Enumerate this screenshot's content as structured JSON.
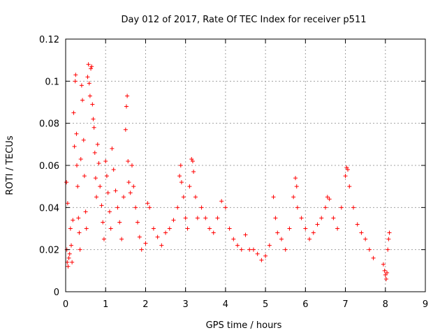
{
  "chart_data": {
    "type": "scatter",
    "title": "Day 012 of 2017, Rate Of TEC Index for receiver p511",
    "xlabel": "GPS time / hours",
    "ylabel": "ROTI / TECUs",
    "xlim": [
      0,
      9
    ],
    "ylim": [
      0,
      0.12
    ],
    "xticks": [
      0,
      1,
      2,
      3,
      4,
      5,
      6,
      7,
      8,
      9
    ],
    "xtick_labels": [
      "0",
      "1",
      "2",
      "3",
      "4",
      "5",
      "6",
      "7",
      "8",
      "9"
    ],
    "yticks": [
      0,
      0.02,
      0.04,
      0.06,
      0.08,
      0.1,
      0.12
    ],
    "ytick_labels": [
      "0",
      "0.02",
      "0.04",
      "0.06",
      "0.08",
      "0.1",
      "0.12"
    ],
    "grid": true,
    "marker": "+",
    "color": "#ff0000",
    "series": [
      {
        "name": "ROTI",
        "points": [
          [
            0.02,
            0.052
          ],
          [
            0.05,
            0.042
          ],
          [
            0.03,
            0.02
          ],
          [
            0.04,
            0.014
          ],
          [
            0.06,
            0.012
          ],
          [
            0.08,
            0.016
          ],
          [
            0.1,
            0.018
          ],
          [
            0.12,
            0.03
          ],
          [
            0.14,
            0.022
          ],
          [
            0.16,
            0.014
          ],
          [
            0.18,
            0.034
          ],
          [
            0.2,
            0.085
          ],
          [
            0.22,
            0.069
          ],
          [
            0.24,
            0.1
          ],
          [
            0.25,
            0.103
          ],
          [
            0.27,
            0.075
          ],
          [
            0.28,
            0.06
          ],
          [
            0.3,
            0.05
          ],
          [
            0.32,
            0.035
          ],
          [
            0.34,
            0.028
          ],
          [
            0.36,
            0.02
          ],
          [
            0.38,
            0.063
          ],
          [
            0.4,
            0.098
          ],
          [
            0.42,
            0.091
          ],
          [
            0.45,
            0.072
          ],
          [
            0.47,
            0.055
          ],
          [
            0.5,
            0.038
          ],
          [
            0.52,
            0.03
          ],
          [
            0.55,
            0.102
          ],
          [
            0.57,
            0.108
          ],
          [
            0.59,
            0.099
          ],
          [
            0.61,
            0.093
          ],
          [
            0.63,
            0.106
          ],
          [
            0.65,
            0.107
          ],
          [
            0.67,
            0.089
          ],
          [
            0.69,
            0.082
          ],
          [
            0.71,
            0.078
          ],
          [
            0.73,
            0.066
          ],
          [
            0.75,
            0.054
          ],
          [
            0.77,
            0.045
          ],
          [
            0.8,
            0.07
          ],
          [
            0.83,
            0.061
          ],
          [
            0.86,
            0.05
          ],
          [
            0.9,
            0.041
          ],
          [
            0.93,
            0.033
          ],
          [
            0.96,
            0.025
          ],
          [
            1.0,
            0.062
          ],
          [
            1.03,
            0.055
          ],
          [
            1.06,
            0.047
          ],
          [
            1.1,
            0.038
          ],
          [
            1.13,
            0.03
          ],
          [
            1.16,
            0.068
          ],
          [
            1.2,
            0.058
          ],
          [
            1.25,
            0.048
          ],
          [
            1.3,
            0.04
          ],
          [
            1.35,
            0.033
          ],
          [
            1.4,
            0.025
          ],
          [
            1.45,
            0.045
          ],
          [
            1.5,
            0.077
          ],
          [
            1.52,
            0.088
          ],
          [
            1.54,
            0.093
          ],
          [
            1.56,
            0.062
          ],
          [
            1.58,
            0.052
          ],
          [
            1.62,
            0.047
          ],
          [
            1.66,
            0.06
          ],
          [
            1.7,
            0.05
          ],
          [
            1.75,
            0.04
          ],
          [
            1.8,
            0.033
          ],
          [
            1.85,
            0.026
          ],
          [
            1.9,
            0.02
          ],
          [
            2.0,
            0.023
          ],
          [
            2.05,
            0.042
          ],
          [
            2.1,
            0.04
          ],
          [
            2.2,
            0.03
          ],
          [
            2.3,
            0.026
          ],
          [
            2.4,
            0.022
          ],
          [
            2.5,
            0.028
          ],
          [
            2.6,
            0.03
          ],
          [
            2.7,
            0.034
          ],
          [
            2.8,
            0.04
          ],
          [
            2.85,
            0.055
          ],
          [
            2.88,
            0.06
          ],
          [
            2.9,
            0.052
          ],
          [
            2.95,
            0.045
          ],
          [
            3.0,
            0.035
          ],
          [
            3.05,
            0.03
          ],
          [
            3.1,
            0.05
          ],
          [
            3.15,
            0.063
          ],
          [
            3.18,
            0.062
          ],
          [
            3.2,
            0.057
          ],
          [
            3.25,
            0.045
          ],
          [
            3.3,
            0.035
          ],
          [
            3.4,
            0.04
          ],
          [
            3.5,
            0.035
          ],
          [
            3.6,
            0.03
          ],
          [
            3.7,
            0.028
          ],
          [
            3.8,
            0.035
          ],
          [
            3.9,
            0.043
          ],
          [
            4.0,
            0.04
          ],
          [
            4.1,
            0.03
          ],
          [
            4.2,
            0.025
          ],
          [
            4.3,
            0.022
          ],
          [
            4.4,
            0.02
          ],
          [
            4.5,
            0.027
          ],
          [
            4.6,
            0.02
          ],
          [
            4.7,
            0.02
          ],
          [
            4.8,
            0.018
          ],
          [
            4.9,
            0.015
          ],
          [
            5.0,
            0.017
          ],
          [
            5.1,
            0.022
          ],
          [
            5.2,
            0.045
          ],
          [
            5.25,
            0.035
          ],
          [
            5.3,
            0.028
          ],
          [
            5.4,
            0.025
          ],
          [
            5.5,
            0.02
          ],
          [
            5.6,
            0.03
          ],
          [
            5.7,
            0.045
          ],
          [
            5.75,
            0.054
          ],
          [
            5.78,
            0.05
          ],
          [
            5.8,
            0.04
          ],
          [
            5.9,
            0.035
          ],
          [
            6.0,
            0.03
          ],
          [
            6.1,
            0.025
          ],
          [
            6.2,
            0.028
          ],
          [
            6.3,
            0.032
          ],
          [
            6.4,
            0.035
          ],
          [
            6.5,
            0.04
          ],
          [
            6.55,
            0.045
          ],
          [
            6.6,
            0.044
          ],
          [
            6.7,
            0.035
          ],
          [
            6.8,
            0.03
          ],
          [
            6.9,
            0.04
          ],
          [
            7.0,
            0.055
          ],
          [
            7.03,
            0.059
          ],
          [
            7.06,
            0.058
          ],
          [
            7.1,
            0.05
          ],
          [
            7.2,
            0.04
          ],
          [
            7.3,
            0.032
          ],
          [
            7.4,
            0.028
          ],
          [
            7.5,
            0.025
          ],
          [
            7.6,
            0.02
          ],
          [
            7.7,
            0.016
          ],
          [
            7.95,
            0.013
          ],
          [
            7.98,
            0.01
          ],
          [
            8.0,
            0.008
          ],
          [
            8.02,
            0.006
          ],
          [
            8.04,
            0.009
          ],
          [
            8.06,
            0.02
          ],
          [
            8.08,
            0.025
          ],
          [
            8.1,
            0.028
          ]
        ]
      }
    ]
  }
}
